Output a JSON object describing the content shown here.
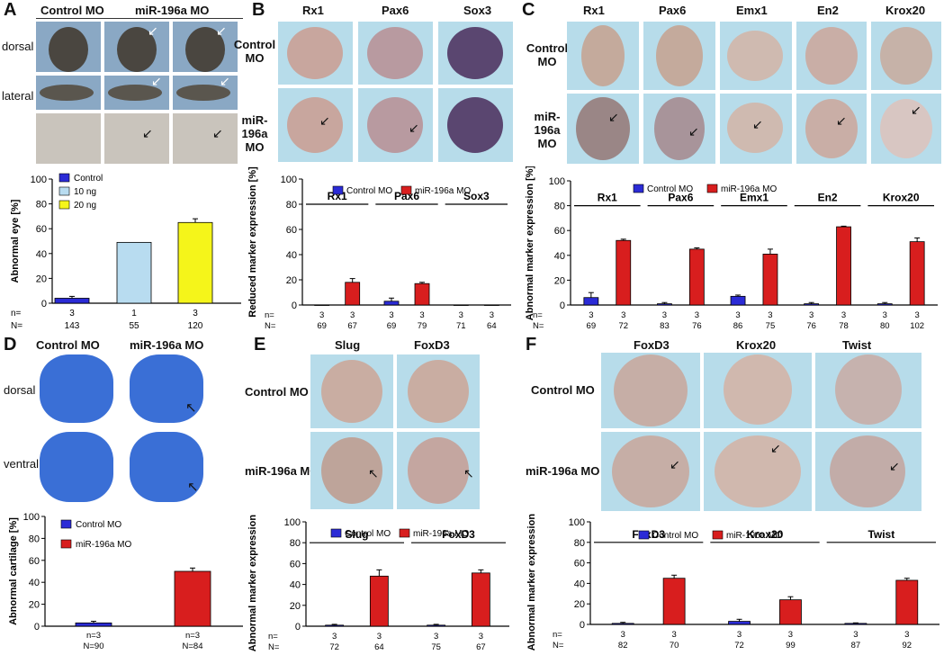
{
  "panels": {
    "A": {
      "letter": "A",
      "col_headers": [
        "Control MO",
        "miR-196a MO"
      ],
      "row_labels": [
        "dorsal",
        "lateral"
      ],
      "chart": {
        "type": "bar",
        "categories": [
          "Control",
          "10 ng",
          "20 ng"
        ],
        "values": [
          4,
          49,
          65
        ],
        "errors": [
          1.5,
          0,
          3
        ],
        "colors": [
          "#2b2bd6",
          "#b8dcf0",
          "#f5f51a"
        ],
        "ylabel": "Abnormal eye [%]",
        "ylim": [
          0,
          100
        ],
        "yticks": [
          0,
          20,
          40,
          60,
          80,
          100
        ],
        "legend": [
          "Control",
          "10 ng",
          "20 ng"
        ],
        "n": [
          "3",
          "1",
          "3"
        ],
        "N": [
          "143",
          "55",
          "120"
        ],
        "n_label": "n=",
        "N_label": "N="
      }
    },
    "B": {
      "letter": "B",
      "col_headers": [
        "Rx1",
        "Pax6",
        "Sox3"
      ],
      "row_labels": [
        "Control MO",
        "miR-196a MO"
      ],
      "chart": {
        "type": "bar",
        "groups": [
          "Rx1",
          "Pax6",
          "Sox3"
        ],
        "series": [
          {
            "name": "Control MO",
            "color": "#2b2bd6",
            "values": [
              0,
              3,
              0
            ],
            "errors": [
              0,
              2.5,
              0
            ]
          },
          {
            "name": "miR-196a MO",
            "color": "#d81e1e",
            "values": [
              18,
              17,
              0
            ],
            "errors": [
              3,
              1,
              0
            ]
          }
        ],
        "ylabel": "Reduced marker expression [%]",
        "ylim": [
          0,
          100
        ],
        "yticks": [
          0,
          20,
          40,
          60,
          80,
          100
        ],
        "n": [
          "3",
          "3",
          "3",
          "3",
          "3",
          "3"
        ],
        "N": [
          "69",
          "67",
          "69",
          "79",
          "71",
          "64"
        ],
        "n_label": "n=",
        "N_label": "N="
      }
    },
    "C": {
      "letter": "C",
      "col_headers": [
        "Rx1",
        "Pax6",
        "Emx1",
        "En2",
        "Krox20"
      ],
      "row_labels": [
        "Control MO",
        "miR-196a MO"
      ],
      "chart": {
        "type": "bar",
        "groups": [
          "Rx1",
          "Pax6",
          "Emx1",
          "En2",
          "Krox20"
        ],
        "series": [
          {
            "name": "Control MO",
            "color": "#2b2bd6",
            "values": [
              6,
              1,
              7,
              1,
              1
            ],
            "errors": [
              4,
              1,
              1,
              1,
              1
            ]
          },
          {
            "name": "miR-196a MO",
            "color": "#d81e1e",
            "values": [
              52,
              45,
              41,
              63,
              51
            ],
            "errors": [
              1,
              1,
              4,
              0.5,
              3
            ]
          }
        ],
        "ylabel": "Abnormal marker expression [%]",
        "ylim": [
          0,
          100
        ],
        "yticks": [
          0,
          20,
          40,
          60,
          80,
          100
        ],
        "n": [
          "3",
          "3",
          "3",
          "3",
          "3",
          "3",
          "3",
          "3",
          "3",
          "3"
        ],
        "N": [
          "69",
          "72",
          "83",
          "76",
          "86",
          "75",
          "76",
          "78",
          "80",
          "102"
        ],
        "n_label": "n=",
        "N_label": "N="
      }
    },
    "D": {
      "letter": "D",
      "col_headers": [
        "Control MO",
        "miR-196a MO"
      ],
      "row_labels": [
        "dorsal",
        "ventral"
      ],
      "chart": {
        "type": "bar",
        "categories": [
          "Control MO",
          "miR-196a MO"
        ],
        "values": [
          3,
          50
        ],
        "errors": [
          1.5,
          3
        ],
        "colors": [
          "#2b2bd6",
          "#d81e1e"
        ],
        "ylabel": "Abnormal cartilage [%]",
        "ylim": [
          0,
          100
        ],
        "yticks": [
          0,
          20,
          40,
          60,
          80,
          100
        ],
        "legend": [
          "Control MO",
          "miR-196a MO"
        ],
        "nN": [
          "n=3 N=90",
          "n=3 N=84"
        ],
        "n_vals": [
          "n=3",
          "n=3"
        ],
        "N_vals": [
          "N=90",
          "N=84"
        ]
      }
    },
    "E": {
      "letter": "E",
      "col_headers": [
        "Slug",
        "FoxD3"
      ],
      "row_labels": [
        "Control MO",
        "miR-196a MO"
      ],
      "chart": {
        "type": "bar",
        "groups": [
          "Slug",
          "FoxD3"
        ],
        "series": [
          {
            "name": "Control MO",
            "color": "#2b2bd6",
            "values": [
              1,
              1
            ],
            "errors": [
              0.8,
              0.8
            ]
          },
          {
            "name": "miR-196a MO",
            "color": "#d81e1e",
            "values": [
              48,
              51
            ],
            "errors": [
              6,
              3
            ]
          }
        ],
        "ylabel": "Abnormal marker expression [%]",
        "ylim": [
          0,
          100
        ],
        "yticks": [
          0,
          20,
          40,
          60,
          80,
          100
        ],
        "n": [
          "3",
          "3",
          "3",
          "3"
        ],
        "N": [
          "72",
          "64",
          "75",
          "67"
        ],
        "n_label": "n=",
        "N_label": "N="
      }
    },
    "F": {
      "letter": "F",
      "col_headers": [
        "FoxD3",
        "Krox20",
        "Twist"
      ],
      "row_labels": [
        "Control MO",
        "miR-196a MO"
      ],
      "chart": {
        "type": "bar",
        "groups": [
          "FoxD3",
          "Krox20",
          "Twist"
        ],
        "series": [
          {
            "name": "Control MO",
            "color": "#2b2bd6",
            "values": [
              1,
              3,
              1
            ],
            "errors": [
              1,
              2,
              0.5
            ]
          },
          {
            "name": "miR-196a MO",
            "color": "#d81e1e",
            "values": [
              45,
              24,
              43
            ],
            "errors": [
              3,
              3,
              2
            ]
          }
        ],
        "ylabel": "Abnormal marker expression [%]",
        "ylim": [
          0,
          100
        ],
        "yticks": [
          0,
          20,
          40,
          60,
          80,
          100
        ],
        "n": [
          "3",
          "3",
          "3",
          "3",
          "3",
          "3"
        ],
        "N": [
          "82",
          "70",
          "72",
          "99",
          "87",
          "92"
        ],
        "n_label": "n=",
        "N_label": "N="
      }
    }
  },
  "chart_data": [
    {
      "type": "bar",
      "panel": "A",
      "ylabel": "Abnormal eye [%]",
      "categories": [
        "Control",
        "10 ng",
        "20 ng"
      ],
      "values": [
        4,
        49,
        65
      ],
      "ylim": [
        0,
        100
      ]
    },
    {
      "type": "bar",
      "panel": "B",
      "ylabel": "Reduced marker expression [%]",
      "categories": [
        "Rx1",
        "Pax6",
        "Sox3"
      ],
      "series": [
        {
          "name": "Control MO",
          "values": [
            0,
            3,
            0
          ]
        },
        {
          "name": "miR-196a MO",
          "values": [
            18,
            17,
            0
          ]
        }
      ],
      "ylim": [
        0,
        100
      ]
    },
    {
      "type": "bar",
      "panel": "C",
      "ylabel": "Abnormal marker expression [%]",
      "categories": [
        "Rx1",
        "Pax6",
        "Emx1",
        "En2",
        "Krox20"
      ],
      "series": [
        {
          "name": "Control MO",
          "values": [
            6,
            1,
            7,
            1,
            1
          ]
        },
        {
          "name": "miR-196a MO",
          "values": [
            52,
            45,
            41,
            63,
            51
          ]
        }
      ],
      "ylim": [
        0,
        100
      ]
    },
    {
      "type": "bar",
      "panel": "D",
      "ylabel": "Abnormal cartilage [%]",
      "categories": [
        "Control MO",
        "miR-196a MO"
      ],
      "values": [
        3,
        50
      ],
      "ylim": [
        0,
        100
      ]
    },
    {
      "type": "bar",
      "panel": "E",
      "ylabel": "Abnormal marker expression [%]",
      "categories": [
        "Slug",
        "FoxD3"
      ],
      "series": [
        {
          "name": "Control MO",
          "values": [
            1,
            1
          ]
        },
        {
          "name": "miR-196a MO",
          "values": [
            48,
            51
          ]
        }
      ],
      "ylim": [
        0,
        100
      ]
    },
    {
      "type": "bar",
      "panel": "F",
      "ylabel": "Abnormal marker expression [%]",
      "categories": [
        "FoxD3",
        "Krox20",
        "Twist"
      ],
      "series": [
        {
          "name": "Control MO",
          "values": [
            1,
            3,
            1
          ]
        },
        {
          "name": "miR-196a MO",
          "values": [
            45,
            24,
            43
          ]
        }
      ],
      "ylim": [
        0,
        100
      ]
    }
  ]
}
